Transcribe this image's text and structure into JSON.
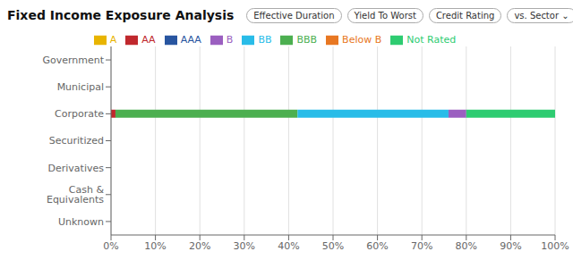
{
  "chart_data": {
    "type": "bar",
    "orientation": "horizontal",
    "stacked": true,
    "title": "Fixed Income Exposure Analysis",
    "annotations": [
      "Effective Duration",
      "Yield To Worst",
      "Credit Rating",
      "vs. Sector ⌄"
    ],
    "categories": [
      "Government",
      "Municipal",
      "Corporate",
      "Securitized",
      "Derivatives",
      "Cash & Equivalents",
      "Unknown"
    ],
    "series": [
      {
        "name": "AAA",
        "color": "#2855a0",
        "values": [
          0,
          0,
          0,
          0,
          0,
          0,
          0
        ]
      },
      {
        "name": "AA",
        "color": "#c0282d",
        "values": [
          0,
          0,
          1.0,
          0,
          0,
          0,
          0
        ]
      },
      {
        "name": "A",
        "color": "#e8b400",
        "values": [
          0,
          0,
          0,
          0,
          0,
          0,
          0
        ]
      },
      {
        "name": "BBB",
        "color": "#4caf50",
        "values": [
          0,
          0,
          41.0,
          0,
          0,
          0,
          0
        ]
      },
      {
        "name": "BB",
        "color": "#29bce8",
        "values": [
          0,
          0,
          34.0,
          0,
          0,
          0,
          0
        ]
      },
      {
        "name": "B",
        "color": "#9b5fc0",
        "values": [
          0,
          0,
          4.0,
          0,
          0,
          0,
          0
        ]
      },
      {
        "name": "Below B",
        "color": "#e87722",
        "values": [
          0,
          0,
          0,
          0,
          0,
          0,
          0
        ]
      },
      {
        "name": "Not Rated",
        "color": "#2ecc71",
        "values": [
          0,
          0,
          20.0,
          0,
          0,
          0,
          0
        ]
      }
    ],
    "xlim": [
      0,
      100
    ],
    "xticks": [
      {
        "value": 0,
        "label": "0%"
      },
      {
        "value": 10,
        "label": "10%"
      },
      {
        "value": 20,
        "label": "20%"
      },
      {
        "value": 30,
        "label": "30%"
      },
      {
        "value": 40,
        "label": "40%"
      },
      {
        "value": 50,
        "label": "50%"
      },
      {
        "value": 60,
        "label": "60%"
      },
      {
        "value": 70,
        "label": "70%"
      },
      {
        "value": 80,
        "label": "80%"
      },
      {
        "value": 90,
        "label": "90%"
      },
      {
        "value": 100,
        "label": "100%"
      }
    ],
    "grid": true,
    "legend": "top"
  }
}
